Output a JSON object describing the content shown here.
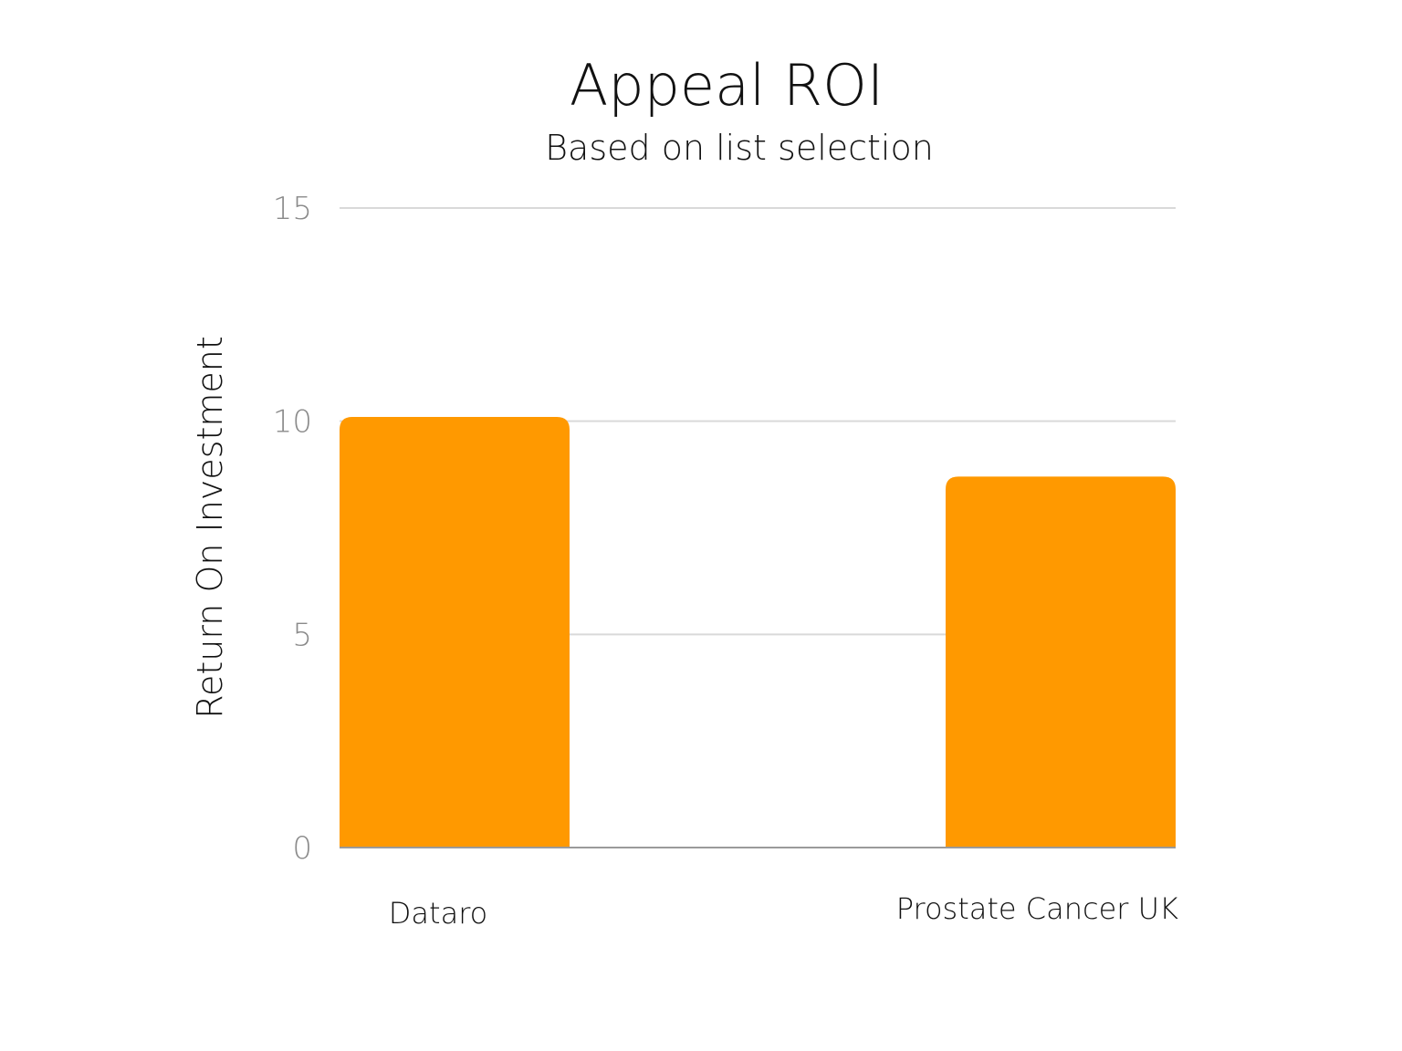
{
  "chart_data": {
    "type": "bar",
    "title": "Appeal ROI",
    "subtitle": "Based on list selection",
    "xlabel": "",
    "ylabel": "Return On Investment",
    "categories": [
      "Dataro",
      "Prostate Cancer UK"
    ],
    "values": [
      10.1,
      8.7
    ],
    "ylim": [
      0,
      15
    ],
    "yticks": [
      0,
      5,
      10,
      15
    ],
    "grid": true,
    "bar_color": "#FF9900"
  }
}
